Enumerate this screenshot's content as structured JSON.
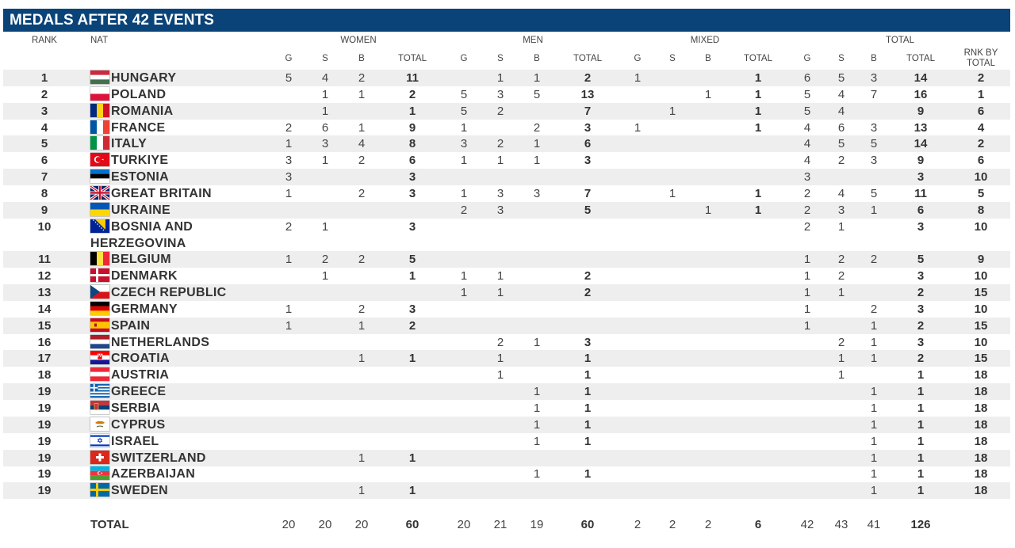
{
  "title": "MEDALS AFTER 42 EVENTS",
  "headers": {
    "rank": "RANK",
    "nat": "NAT",
    "groups": [
      "WOMEN",
      "MEN",
      "MIXED",
      "TOTAL"
    ],
    "sub": [
      "G",
      "S",
      "B",
      "TOTAL"
    ],
    "rank_by_total_1": "RNK BY",
    "rank_by_total_2": "TOTAL"
  },
  "rows": [
    {
      "rank": "1",
      "nation": "HUNGARY",
      "flag": "hungary",
      "women": [
        "5",
        "4",
        "2",
        "11"
      ],
      "men": [
        "",
        "1",
        "1",
        "2"
      ],
      "mixed": [
        "1",
        "",
        "",
        "1"
      ],
      "total": [
        "6",
        "5",
        "3",
        "14"
      ],
      "rbt": "2"
    },
    {
      "rank": "2",
      "nation": "POLAND",
      "flag": "poland",
      "women": [
        "",
        "1",
        "1",
        "2"
      ],
      "men": [
        "5",
        "3",
        "5",
        "13"
      ],
      "mixed": [
        "",
        "",
        "1",
        "1"
      ],
      "total": [
        "5",
        "4",
        "7",
        "16"
      ],
      "rbt": "1"
    },
    {
      "rank": "3",
      "nation": "ROMANIA",
      "flag": "romania",
      "women": [
        "",
        "1",
        "",
        "1"
      ],
      "men": [
        "5",
        "2",
        "",
        "7"
      ],
      "mixed": [
        "",
        "1",
        "",
        "1"
      ],
      "total": [
        "5",
        "4",
        "",
        "9"
      ],
      "rbt": "6"
    },
    {
      "rank": "4",
      "nation": "FRANCE",
      "flag": "france",
      "women": [
        "2",
        "6",
        "1",
        "9"
      ],
      "men": [
        "1",
        "",
        "2",
        "3"
      ],
      "mixed": [
        "1",
        "",
        "",
        "1"
      ],
      "total": [
        "4",
        "6",
        "3",
        "13"
      ],
      "rbt": "4"
    },
    {
      "rank": "5",
      "nation": "ITALY",
      "flag": "italy",
      "women": [
        "1",
        "3",
        "4",
        "8"
      ],
      "men": [
        "3",
        "2",
        "1",
        "6"
      ],
      "mixed": [
        "",
        "",
        "",
        ""
      ],
      "total": [
        "4",
        "5",
        "5",
        "14"
      ],
      "rbt": "2"
    },
    {
      "rank": "6",
      "nation": "TURKIYE",
      "flag": "turkiye",
      "women": [
        "3",
        "1",
        "2",
        "6"
      ],
      "men": [
        "1",
        "1",
        "1",
        "3"
      ],
      "mixed": [
        "",
        "",
        "",
        ""
      ],
      "total": [
        "4",
        "2",
        "3",
        "9"
      ],
      "rbt": "6"
    },
    {
      "rank": "7",
      "nation": "ESTONIA",
      "flag": "estonia",
      "women": [
        "3",
        "",
        "",
        "3"
      ],
      "men": [
        "",
        "",
        "",
        ""
      ],
      "mixed": [
        "",
        "",
        "",
        ""
      ],
      "total": [
        "3",
        "",
        "",
        "3"
      ],
      "rbt": "10"
    },
    {
      "rank": "8",
      "nation": "GREAT BRITAIN",
      "flag": "gb",
      "women": [
        "1",
        "",
        "2",
        "3"
      ],
      "men": [
        "1",
        "3",
        "3",
        "7"
      ],
      "mixed": [
        "",
        "1",
        "",
        "1"
      ],
      "total": [
        "2",
        "4",
        "5",
        "11"
      ],
      "rbt": "5"
    },
    {
      "rank": "9",
      "nation": "UKRAINE",
      "flag": "ukraine",
      "women": [
        "",
        "",
        "",
        ""
      ],
      "men": [
        "2",
        "3",
        "",
        "5"
      ],
      "mixed": [
        "",
        "",
        "1",
        "1"
      ],
      "total": [
        "2",
        "3",
        "1",
        "6"
      ],
      "rbt": "8"
    },
    {
      "rank": "10",
      "nation": "BOSNIA AND",
      "nation2": "HERZEGOVINA",
      "flag": "bosnia",
      "women": [
        "2",
        "1",
        "",
        "3"
      ],
      "men": [
        "",
        "",
        "",
        ""
      ],
      "mixed": [
        "",
        "",
        "",
        ""
      ],
      "total": [
        "2",
        "1",
        "",
        "3"
      ],
      "rbt": "10"
    },
    {
      "rank": "11",
      "nation": "BELGIUM",
      "flag": "belgium",
      "women": [
        "1",
        "2",
        "2",
        "5"
      ],
      "men": [
        "",
        "",
        "",
        ""
      ],
      "mixed": [
        "",
        "",
        "",
        ""
      ],
      "total": [
        "1",
        "2",
        "2",
        "5"
      ],
      "rbt": "9"
    },
    {
      "rank": "12",
      "nation": "DENMARK",
      "flag": "denmark",
      "women": [
        "",
        "1",
        "",
        "1"
      ],
      "men": [
        "1",
        "1",
        "",
        "2"
      ],
      "mixed": [
        "",
        "",
        "",
        ""
      ],
      "total": [
        "1",
        "2",
        "",
        "3"
      ],
      "rbt": "10"
    },
    {
      "rank": "13",
      "nation": "CZECH REPUBLIC",
      "flag": "czech",
      "women": [
        "",
        "",
        "",
        ""
      ],
      "men": [
        "1",
        "1",
        "",
        "2"
      ],
      "mixed": [
        "",
        "",
        "",
        ""
      ],
      "total": [
        "1",
        "1",
        "",
        "2"
      ],
      "rbt": "15"
    },
    {
      "rank": "14",
      "nation": "GERMANY",
      "flag": "germany",
      "women": [
        "1",
        "",
        "2",
        "3"
      ],
      "men": [
        "",
        "",
        "",
        ""
      ],
      "mixed": [
        "",
        "",
        "",
        ""
      ],
      "total": [
        "1",
        "",
        "2",
        "3"
      ],
      "rbt": "10"
    },
    {
      "rank": "15",
      "nation": "SPAIN",
      "flag": "spain",
      "women": [
        "1",
        "",
        "1",
        "2"
      ],
      "men": [
        "",
        "",
        "",
        ""
      ],
      "mixed": [
        "",
        "",
        "",
        ""
      ],
      "total": [
        "1",
        "",
        "1",
        "2"
      ],
      "rbt": "15"
    },
    {
      "rank": "16",
      "nation": "NETHERLANDS",
      "flag": "netherlands",
      "women": [
        "",
        "",
        "",
        ""
      ],
      "men": [
        "",
        "2",
        "1",
        "3"
      ],
      "mixed": [
        "",
        "",
        "",
        ""
      ],
      "total": [
        "",
        "2",
        "1",
        "3"
      ],
      "rbt": "10"
    },
    {
      "rank": "17",
      "nation": "CROATIA",
      "flag": "croatia",
      "women": [
        "",
        "",
        "1",
        "1"
      ],
      "men": [
        "",
        "1",
        "",
        "1"
      ],
      "mixed": [
        "",
        "",
        "",
        ""
      ],
      "total": [
        "",
        "1",
        "1",
        "2"
      ],
      "rbt": "15"
    },
    {
      "rank": "18",
      "nation": "AUSTRIA",
      "flag": "austria",
      "women": [
        "",
        "",
        "",
        ""
      ],
      "men": [
        "",
        "1",
        "",
        "1"
      ],
      "mixed": [
        "",
        "",
        "",
        ""
      ],
      "total": [
        "",
        "1",
        "",
        "1"
      ],
      "rbt": "18"
    },
    {
      "rank": "19",
      "nation": "GREECE",
      "flag": "greece",
      "women": [
        "",
        "",
        "",
        ""
      ],
      "men": [
        "",
        "",
        "1",
        "1"
      ],
      "mixed": [
        "",
        "",
        "",
        ""
      ],
      "total": [
        "",
        "",
        "1",
        "1"
      ],
      "rbt": "18"
    },
    {
      "rank": "19",
      "nation": "SERBIA",
      "flag": "serbia",
      "women": [
        "",
        "",
        "",
        ""
      ],
      "men": [
        "",
        "",
        "1",
        "1"
      ],
      "mixed": [
        "",
        "",
        "",
        ""
      ],
      "total": [
        "",
        "",
        "1",
        "1"
      ],
      "rbt": "18"
    },
    {
      "rank": "19",
      "nation": "CYPRUS",
      "flag": "cyprus",
      "women": [
        "",
        "",
        "",
        ""
      ],
      "men": [
        "",
        "",
        "1",
        "1"
      ],
      "mixed": [
        "",
        "",
        "",
        ""
      ],
      "total": [
        "",
        "",
        "1",
        "1"
      ],
      "rbt": "18"
    },
    {
      "rank": "19",
      "nation": "ISRAEL",
      "flag": "israel",
      "women": [
        "",
        "",
        "",
        ""
      ],
      "men": [
        "",
        "",
        "1",
        "1"
      ],
      "mixed": [
        "",
        "",
        "",
        ""
      ],
      "total": [
        "",
        "",
        "1",
        "1"
      ],
      "rbt": "18"
    },
    {
      "rank": "19",
      "nation": "SWITZERLAND",
      "flag": "switzerland",
      "women": [
        "",
        "",
        "1",
        "1"
      ],
      "men": [
        "",
        "",
        "",
        ""
      ],
      "mixed": [
        "",
        "",
        "",
        ""
      ],
      "total": [
        "",
        "",
        "1",
        "1"
      ],
      "rbt": "18"
    },
    {
      "rank": "19",
      "nation": "AZERBAIJAN",
      "flag": "azerbaijan",
      "women": [
        "",
        "",
        "",
        ""
      ],
      "men": [
        "",
        "",
        "1",
        "1"
      ],
      "mixed": [
        "",
        "",
        "",
        ""
      ],
      "total": [
        "",
        "",
        "1",
        "1"
      ],
      "rbt": "18"
    },
    {
      "rank": "19",
      "nation": "SWEDEN",
      "flag": "sweden",
      "women": [
        "",
        "",
        "1",
        "1"
      ],
      "men": [
        "",
        "",
        "",
        ""
      ],
      "mixed": [
        "",
        "",
        "",
        ""
      ],
      "total": [
        "",
        "",
        "1",
        "1"
      ],
      "rbt": "18"
    }
  ],
  "totals": {
    "label": "TOTAL",
    "women": [
      "20",
      "20",
      "20",
      "60"
    ],
    "men": [
      "20",
      "21",
      "19",
      "60"
    ],
    "mixed": [
      "2",
      "2",
      "2",
      "6"
    ],
    "total": [
      "42",
      "43",
      "41",
      "126"
    ]
  }
}
